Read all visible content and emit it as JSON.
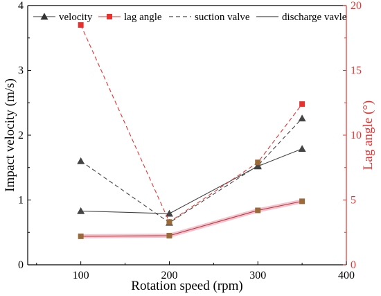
{
  "chart_data": {
    "type": "line",
    "xlabel": "Rotation speed (rpm)",
    "ylabel": "Impact velocity (m/s)",
    "y2label": "Lag angle (°)",
    "xlim": [
      40,
      400
    ],
    "ylim": [
      0,
      4
    ],
    "y2lim": [
      0,
      20
    ],
    "xticks": [
      100,
      200,
      300,
      400
    ],
    "yticks": [
      0,
      1,
      2,
      3,
      4
    ],
    "y2ticks": [
      0,
      5,
      10,
      15,
      20
    ],
    "grid": false,
    "legend_position": "top",
    "legend": [
      {
        "label": "velocity",
        "kind": "marker",
        "marker": "triangle",
        "color": "#333333"
      },
      {
        "label": "lag angle",
        "kind": "marker",
        "marker": "square",
        "color": "#e8312f"
      },
      {
        "label": "suction valve",
        "kind": "line",
        "dash": "dashed",
        "color": "#222222"
      },
      {
        "label": "discharge vavle",
        "kind": "line",
        "dash": "solid",
        "color": "#222222"
      }
    ],
    "series": [
      {
        "x": [
          100,
          200,
          300,
          350
        ],
        "values": [
          1.6,
          0.65,
          1.53,
          2.26
        ],
        "axis": "left",
        "marker": "triangle",
        "line": "dashed",
        "color": "#444444",
        "marker_color": "#444444"
      },
      {
        "x": [
          100,
          200,
          300,
          350
        ],
        "values": [
          0.83,
          0.79,
          1.52,
          1.79
        ],
        "axis": "left",
        "marker": "triangle",
        "line": "solid",
        "color": "#444444",
        "marker_color": "#444444"
      },
      {
        "x": [
          100,
          200,
          300,
          350
        ],
        "values": [
          18.5,
          3.3,
          7.9,
          12.4
        ],
        "axis": "right",
        "marker": "square",
        "line": "dashed",
        "color": "#e8312f",
        "marker_color": "#e8312f",
        "marker_colors": [
          "#e8312f",
          "#9a6a3a",
          "#9a6a3a",
          "#e8312f"
        ]
      },
      {
        "x": [
          100,
          200,
          300,
          350
        ],
        "values": [
          2.2,
          2.25,
          4.2,
          4.9
        ],
        "axis": "right",
        "marker": "square",
        "line": "solid",
        "color": "#c0393b",
        "marker_color": "#9a6a3a",
        "halo": "#f2c4d0"
      }
    ],
    "colors": {
      "left_axis": "#000000",
      "right_axis": "#e8312f"
    }
  }
}
